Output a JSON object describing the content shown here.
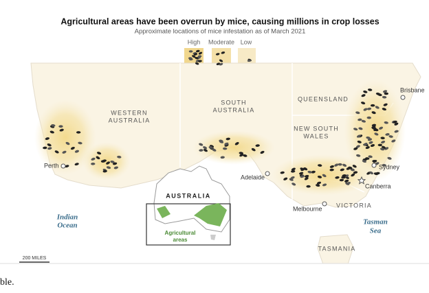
{
  "header": {
    "title": "Agricultural areas have been overrun by mice, causing millions in crop losses",
    "subtitle": "Approximate locations of mice infestation as of March 2021"
  },
  "legend": [
    {
      "label": "High"
    },
    {
      "label": "Moderate"
    },
    {
      "label": "Low"
    }
  ],
  "states": [
    {
      "lines": [
        "WESTERN",
        "AUSTRALIA"
      ]
    },
    {
      "lines": [
        "SOUTH",
        "AUSTRALIA"
      ]
    },
    {
      "lines": [
        "QUEENSLAND"
      ]
    },
    {
      "lines": [
        "NEW SOUTH",
        "WALES"
      ]
    },
    {
      "lines": [
        "VICTORIA"
      ]
    },
    {
      "lines": [
        "TASMANIA"
      ]
    }
  ],
  "cities": [
    {
      "name": "Brisbane"
    },
    {
      "name": "Perth"
    },
    {
      "name": "Adelaide"
    },
    {
      "name": "Sydney"
    },
    {
      "name": "Canberra"
    },
    {
      "name": "Melbourne"
    }
  ],
  "water": [
    {
      "lines": [
        "Indian",
        "Ocean"
      ]
    },
    {
      "lines": [
        "Tasman",
        "Sea"
      ]
    }
  ],
  "inset": {
    "title": "AUSTRALIA",
    "label": [
      "Agricultural",
      "areas"
    ]
  },
  "scale": {
    "label": "200 MILES"
  },
  "footer": {
    "text": "ble."
  }
}
